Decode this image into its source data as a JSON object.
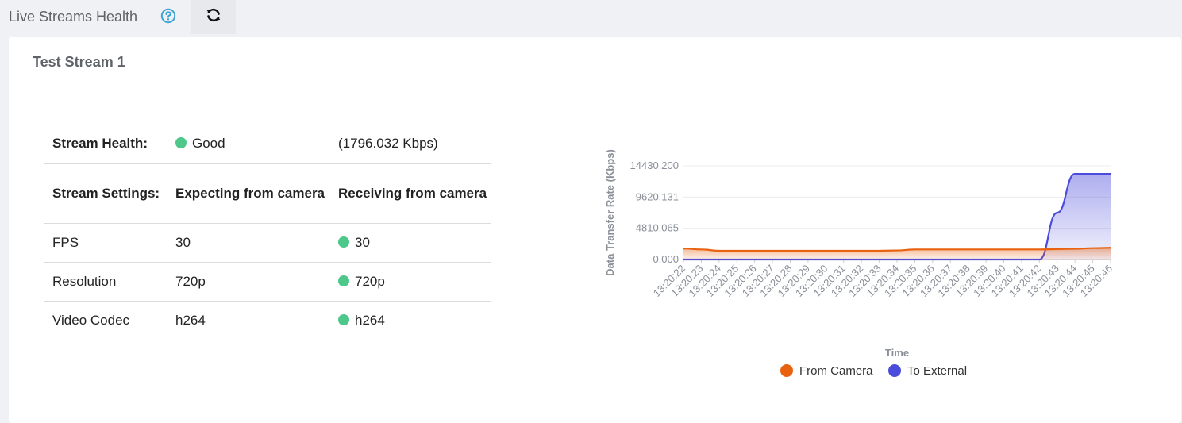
{
  "header": {
    "title": "Live Streams Health",
    "help_icon": "question-circle-icon",
    "refresh_icon": "refresh-icon"
  },
  "stream": {
    "name": "Test Stream 1",
    "health_label": "Stream Health:",
    "health_status": "Good",
    "health_rate": "(1796.032 Kbps)",
    "settings_label": "Stream Settings:",
    "expecting_label": "Expecting from camera",
    "receiving_label": "Receiving from camera",
    "rows": [
      {
        "name": "FPS",
        "expected": "30",
        "received": "30"
      },
      {
        "name": "Resolution",
        "expected": "720p",
        "received": "720p"
      },
      {
        "name": "Video Codec",
        "expected": "h264",
        "received": "h264"
      }
    ],
    "status_color": "#4dc88a"
  },
  "chart_data": {
    "type": "area",
    "ylabel": "Data Transfer Rate (Kbps)",
    "xlabel": "Time",
    "y_ticks": [
      "0.000",
      "4810.065",
      "9620.131",
      "14430.200"
    ],
    "ylim": [
      0,
      14430.2
    ],
    "x": [
      "13:20:22",
      "13:20:23",
      "13:20:24",
      "13:20:25",
      "13:20:26",
      "13:20:27",
      "13:20:28",
      "13:20:29",
      "13:20:30",
      "13:20:31",
      "13:20:32",
      "13:20:33",
      "13:20:34",
      "13:20:35",
      "13:20:36",
      "13:20:37",
      "13:20:38",
      "13:20:39",
      "13:20:40",
      "13:20:41",
      "13:20:42",
      "13:20:43",
      "13:20:44",
      "13:20:45",
      "13:20:46"
    ],
    "series": [
      {
        "name": "From Camera",
        "color": "#e8620f",
        "values": [
          1700,
          1550,
          1350,
          1350,
          1350,
          1350,
          1350,
          1350,
          1350,
          1350,
          1350,
          1350,
          1400,
          1550,
          1550,
          1550,
          1550,
          1550,
          1550,
          1550,
          1550,
          1600,
          1650,
          1750,
          1800
        ]
      },
      {
        "name": "To External",
        "color": "#4b4bdc",
        "values": [
          0,
          0,
          0,
          0,
          0,
          0,
          0,
          0,
          0,
          0,
          0,
          0,
          0,
          0,
          0,
          0,
          0,
          0,
          0,
          0,
          0,
          7200,
          13200,
          13200,
          13200
        ]
      }
    ],
    "legend_position": "bottom",
    "grid": true
  }
}
